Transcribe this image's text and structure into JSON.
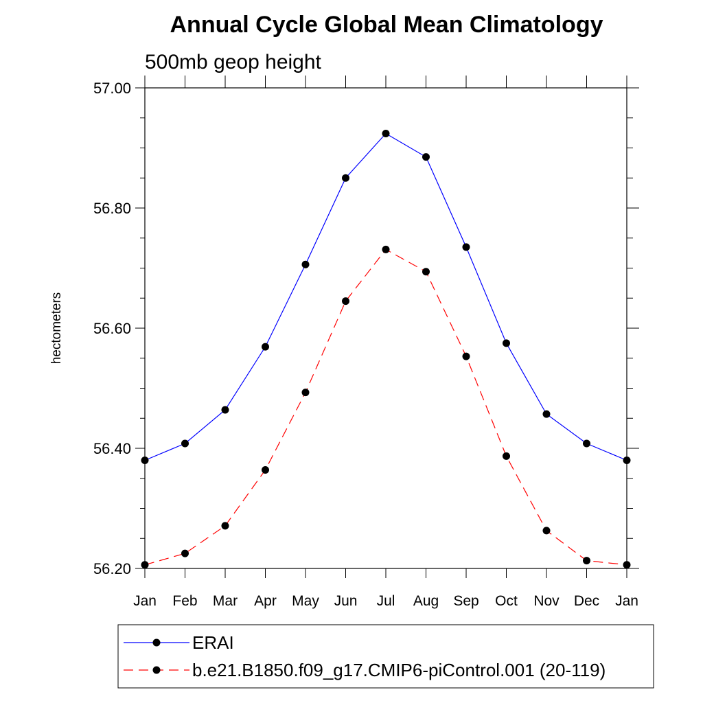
{
  "chart_data": {
    "type": "line",
    "title": "Annual Cycle Global Mean Climatology",
    "subtitle": "500mb geop height",
    "ylabel": "hectometers",
    "xlabel": "",
    "categories": [
      "Jan",
      "Feb",
      "Mar",
      "Apr",
      "May",
      "Jun",
      "Jul",
      "Aug",
      "Sep",
      "Oct",
      "Nov",
      "Dec",
      "Jan"
    ],
    "ylim": [
      56.2,
      57.0
    ],
    "yticks": [
      "56.20",
      "56.40",
      "56.60",
      "56.80",
      "57.00"
    ],
    "series": [
      {
        "name": "ERAI",
        "color": "#0000ff",
        "line_style": "solid",
        "values": [
          56.38,
          56.408,
          56.464,
          56.569,
          56.706,
          56.85,
          56.924,
          56.885,
          56.735,
          56.575,
          56.457,
          56.408,
          56.38
        ]
      },
      {
        "name": "b.e21.B1850.f09_g17.CMIP6-piControl.001 (20-119)",
        "color": "#ff0000",
        "line_style": "dashed",
        "values": [
          56.206,
          56.225,
          56.271,
          56.364,
          56.493,
          56.645,
          56.731,
          56.694,
          56.553,
          56.387,
          56.263,
          56.213,
          56.206
        ]
      }
    ],
    "legend_position": "bottom",
    "grid": false
  }
}
